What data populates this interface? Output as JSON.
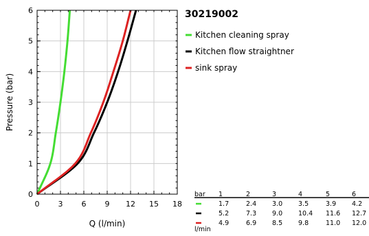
{
  "chart_data": {
    "type": "line",
    "title": "30219002",
    "xlabel": "Q (l/min)",
    "ylabel": "Pressure (bar)",
    "xlim": [
      0,
      18
    ],
    "ylim": [
      0,
      6
    ],
    "xticks": [
      0,
      3,
      6,
      9,
      12,
      15,
      18
    ],
    "yticks": [
      0,
      1,
      2,
      3,
      4,
      5,
      6
    ],
    "grid": true,
    "legend_position": "right",
    "series": [
      {
        "name": "Kitchen cleaning spray",
        "color": "#44dd33",
        "x": [
          0,
          1.7,
          2.4,
          3.0,
          3.5,
          3.9,
          4.2
        ],
        "y": [
          0,
          1,
          2,
          3,
          4,
          5,
          6
        ]
      },
      {
        "name": "Kitchen flow straightner",
        "color": "#000000",
        "x": [
          0,
          5.2,
          7.3,
          9.0,
          10.4,
          11.6,
          12.7
        ],
        "y": [
          0,
          1,
          2,
          3,
          4,
          5,
          6
        ]
      },
      {
        "name": "sink spray",
        "color": "#dd2222",
        "x": [
          0,
          4.9,
          6.9,
          8.5,
          9.8,
          11.0,
          12.0
        ],
        "y": [
          0,
          1,
          2,
          3,
          4,
          5,
          6
        ]
      }
    ],
    "table": {
      "header_label": "bar",
      "bar_values": [
        "1",
        "2",
        "3",
        "4",
        "5",
        "6"
      ],
      "unit_label": "l/min",
      "rows": [
        {
          "color": "#44dd33",
          "values": [
            "1.7",
            "2.4",
            "3.0",
            "3.5",
            "3.9",
            "4.2"
          ]
        },
        {
          "color": "#000000",
          "values": [
            "5.2",
            "7.3",
            "9.0",
            "10.4",
            "11.6",
            "12.7"
          ]
        },
        {
          "color": "#dd2222",
          "values": [
            "4.9",
            "6.9",
            "8.5",
            "9.8",
            "11.0",
            "12.0"
          ]
        }
      ]
    }
  }
}
